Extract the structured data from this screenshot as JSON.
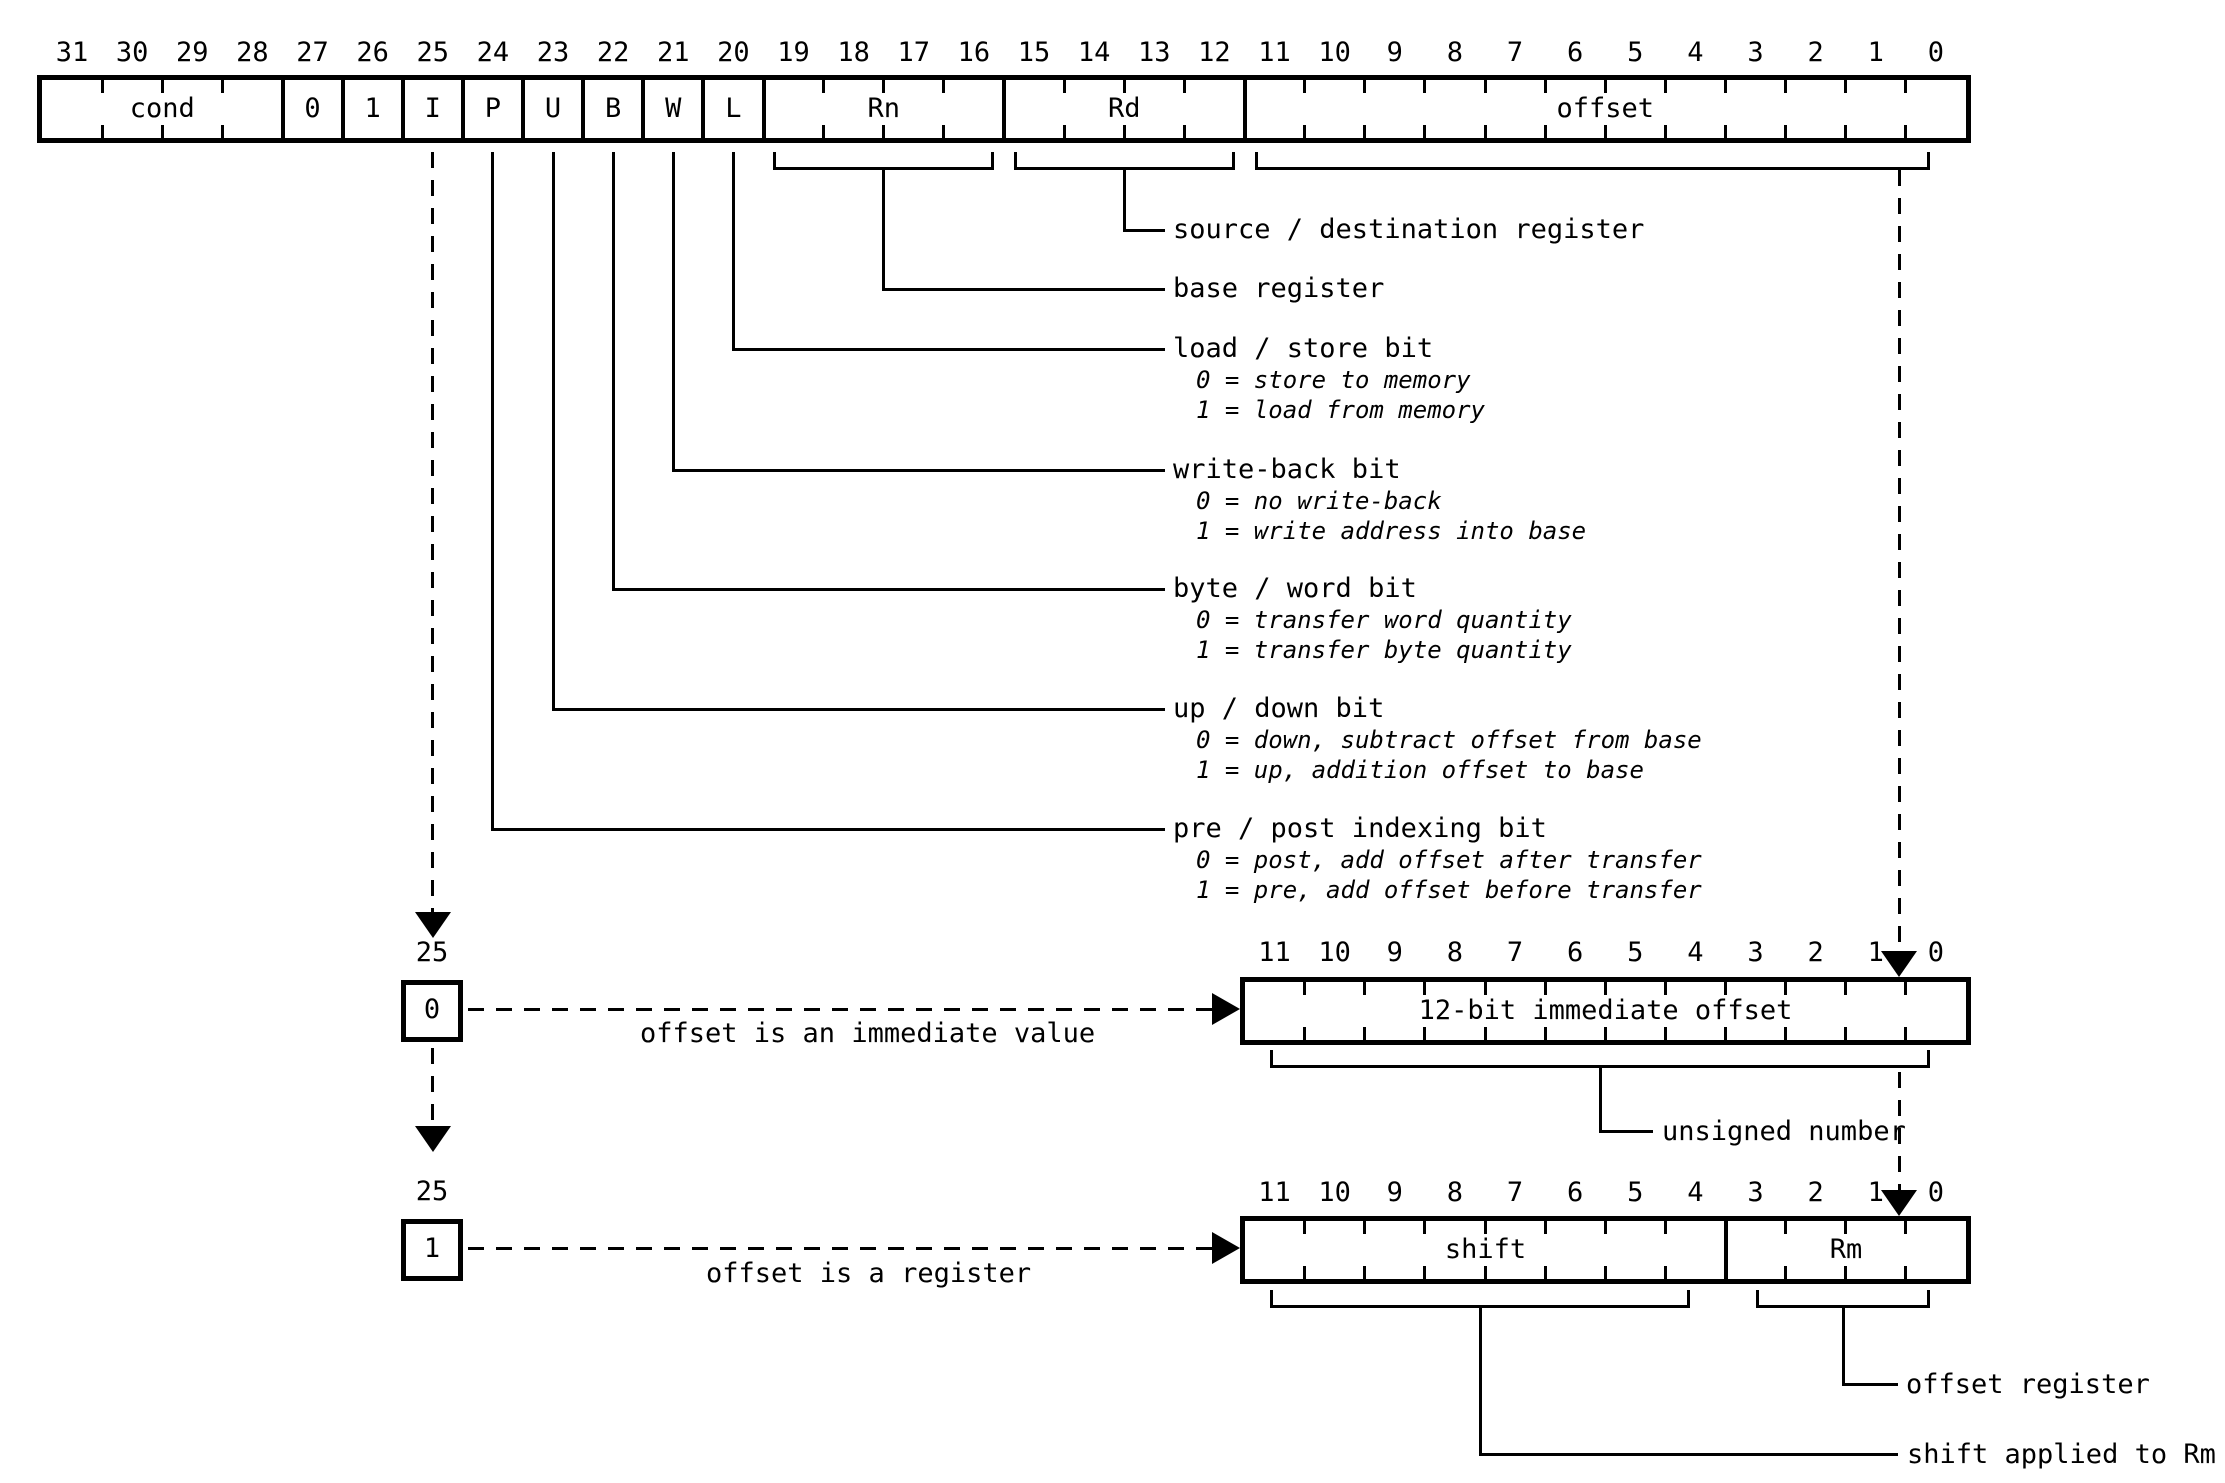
{
  "colors": {
    "foreground": "#000000",
    "background": "#ffffff"
  },
  "instruction_word": {
    "bit_numbers": [
      "31",
      "30",
      "29",
      "28",
      "27",
      "26",
      "25",
      "24",
      "23",
      "22",
      "21",
      "20",
      "19",
      "18",
      "17",
      "16",
      "15",
      "14",
      "13",
      "12",
      "11",
      "10",
      "9",
      "8",
      "7",
      "6",
      "5",
      "4",
      "3",
      "2",
      "1",
      "0"
    ],
    "fields": [
      {
        "label": "cond",
        "msb": 31,
        "lsb": 28
      },
      {
        "label": "0",
        "msb": 27,
        "lsb": 27
      },
      {
        "label": "1",
        "msb": 26,
        "lsb": 26
      },
      {
        "label": "I",
        "msb": 25,
        "lsb": 25
      },
      {
        "label": "P",
        "msb": 24,
        "lsb": 24
      },
      {
        "label": "U",
        "msb": 23,
        "lsb": 23
      },
      {
        "label": "B",
        "msb": 22,
        "lsb": 22
      },
      {
        "label": "W",
        "msb": 21,
        "lsb": 21
      },
      {
        "label": "L",
        "msb": 20,
        "lsb": 20
      },
      {
        "label": "Rn",
        "msb": 19,
        "lsb": 16
      },
      {
        "label": "Rd",
        "msb": 15,
        "lsb": 12
      },
      {
        "label": "offset",
        "msb": 11,
        "lsb": 0
      }
    ]
  },
  "annotations": [
    {
      "field": "Rd",
      "label": "source / destination register",
      "notes": []
    },
    {
      "field": "Rn",
      "label": "base register",
      "notes": []
    },
    {
      "field": "L",
      "label": "load / store bit",
      "notes": [
        "0 = store to memory",
        "1 = load from memory"
      ]
    },
    {
      "field": "W",
      "label": "write-back bit",
      "notes": [
        "0 = no write-back",
        "1 = write address into base"
      ]
    },
    {
      "field": "B",
      "label": "byte / word bit",
      "notes": [
        "0 = transfer word quantity",
        "1 = transfer byte quantity"
      ]
    },
    {
      "field": "U",
      "label": "up / down bit",
      "notes": [
        "0 = down, subtract offset from base",
        "1 = up, addition offset to base"
      ]
    },
    {
      "field": "P",
      "label": "pre / post indexing bit",
      "notes": [
        "0 = post, add offset after transfer",
        "1 = pre, add offset before transfer"
      ]
    }
  ],
  "immediate_variant": {
    "selector_bit_label": "25",
    "selector_value": "0",
    "arrow_caption": "offset is an immediate value",
    "bit_numbers": [
      "11",
      "10",
      "9",
      "8",
      "7",
      "6",
      "5",
      "4",
      "3",
      "2",
      "1",
      "0"
    ],
    "field_label": "12-bit immediate offset",
    "annotation": "unsigned number"
  },
  "register_variant": {
    "selector_bit_label": "25",
    "selector_value": "1",
    "arrow_caption": "offset is a register",
    "bit_numbers": [
      "11",
      "10",
      "9",
      "8",
      "7",
      "6",
      "5",
      "4",
      "3",
      "2",
      "1",
      "0"
    ],
    "fields": [
      {
        "label": "shift",
        "msb": 11,
        "lsb": 4
      },
      {
        "label": "Rm",
        "msb": 3,
        "lsb": 0
      }
    ],
    "annotations": [
      {
        "field": "Rm",
        "label": "offset register"
      },
      {
        "field": "shift",
        "label": "shift applied to Rm"
      }
    ]
  }
}
